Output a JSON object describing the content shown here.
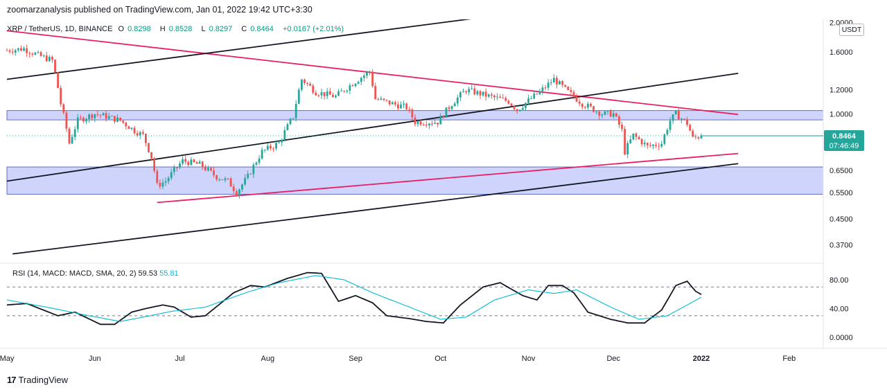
{
  "publish_line": "zoomarzanalysis published on TradingView.com, Jan 01, 2022 19:42 UTC+3:30",
  "legend": {
    "symbol": "XRP / TetherUS, 1D, BINANCE",
    "open_label": "O",
    "open": "0.8298",
    "high_label": "H",
    "high": "0.8528",
    "low_label": "L",
    "low": "0.8297",
    "close_label": "C",
    "close": "0.8464",
    "change": "+0.0167 (+2.01%)"
  },
  "currency": "USDT",
  "last_price": {
    "price": "0.8464",
    "countdown": "07:46:49"
  },
  "rsi_legend": {
    "label": "RSI (14, MACD: MACD, SMA, 20, 2)",
    "rsi_value": "59.53",
    "ma_value": "55.81"
  },
  "brand": {
    "logo": "17",
    "name": "TradingView"
  },
  "chart_data": [
    {
      "type": "candlestick",
      "scale": "log",
      "y_ticks": [
        2.0,
        1.6,
        1.2,
        1.0,
        0.65,
        0.55,
        0.45,
        0.37
      ],
      "y_tick_labels": [
        "2.0000",
        "1.6000",
        "1.2000",
        "1.0000",
        "0.6500",
        "0.5500",
        "0.4500",
        "0.3700"
      ],
      "x_labels": [
        "May",
        "Jun",
        "Jul",
        "Aug",
        "Sep",
        "Oct",
        "Nov",
        "Dec",
        "2022",
        "Feb"
      ],
      "last_close": 0.8464,
      "anchors": [
        [
          "2021-05-01",
          1.62
        ],
        [
          "2021-05-07",
          1.64
        ],
        [
          "2021-05-12",
          1.56
        ],
        [
          "2021-05-17",
          1.5
        ],
        [
          "2021-05-20",
          1.08
        ],
        [
          "2021-05-23",
          0.8
        ],
        [
          "2021-05-26",
          0.95
        ],
        [
          "2021-06-01",
          1.0
        ],
        [
          "2021-06-05",
          0.98
        ],
        [
          "2021-06-10",
          0.95
        ],
        [
          "2021-06-15",
          0.88
        ],
        [
          "2021-06-18",
          0.85
        ],
        [
          "2021-06-21",
          0.72
        ],
        [
          "2021-06-23",
          0.58
        ],
        [
          "2021-06-26",
          0.6
        ],
        [
          "2021-07-02",
          0.7
        ],
        [
          "2021-07-08",
          0.68
        ],
        [
          "2021-07-14",
          0.62
        ],
        [
          "2021-07-18",
          0.6
        ],
        [
          "2021-07-21",
          0.55
        ],
        [
          "2021-07-25",
          0.62
        ],
        [
          "2021-07-30",
          0.75
        ],
        [
          "2021-08-05",
          0.8
        ],
        [
          "2021-08-10",
          0.98
        ],
        [
          "2021-08-13",
          1.3
        ],
        [
          "2021-08-18",
          1.18
        ],
        [
          "2021-08-25",
          1.14
        ],
        [
          "2021-09-02",
          1.3
        ],
        [
          "2021-09-06",
          1.38
        ],
        [
          "2021-09-08",
          1.12
        ],
        [
          "2021-09-14",
          1.08
        ],
        [
          "2021-09-19",
          1.05
        ],
        [
          "2021-09-22",
          0.94
        ],
        [
          "2021-09-30",
          0.94
        ],
        [
          "2021-10-05",
          1.08
        ],
        [
          "2021-10-10",
          1.2
        ],
        [
          "2021-10-17",
          1.15
        ],
        [
          "2021-10-25",
          1.1
        ],
        [
          "2021-10-28",
          1.03
        ],
        [
          "2021-11-05",
          1.18
        ],
        [
          "2021-11-10",
          1.3
        ],
        [
          "2021-11-15",
          1.18
        ],
        [
          "2021-11-20",
          1.08
        ],
        [
          "2021-11-27",
          1.0
        ],
        [
          "2021-12-01",
          1.0
        ],
        [
          "2021-12-04",
          0.88
        ],
        [
          "2021-12-05",
          0.75
        ],
        [
          "2021-12-08",
          0.85
        ],
        [
          "2021-12-13",
          0.78
        ],
        [
          "2021-12-18",
          0.8
        ],
        [
          "2021-12-21",
          0.95
        ],
        [
          "2021-12-23",
          1.0
        ],
        [
          "2021-12-27",
          0.93
        ],
        [
          "2021-12-29",
          0.83
        ],
        [
          "2022-01-01",
          0.8464
        ]
      ],
      "zones": [
        {
          "name": "resistance-zone",
          "from": 0.955,
          "to": 1.025,
          "color": "#c5cdfc"
        },
        {
          "name": "support-zone",
          "from": 0.543,
          "to": 0.668,
          "color": "#c5cdfc"
        }
      ],
      "trend_lines": [
        {
          "color": "#e91e63",
          "from": [
            "2021-05-01",
            1.88
          ],
          "to": [
            "2022-01-14",
            0.995
          ]
        },
        {
          "color": "#e91e63",
          "from": [
            "2021-06-23",
            0.51
          ],
          "to": [
            "2022-01-14",
            0.74
          ]
        },
        {
          "color": "#131722",
          "from": [
            "2021-05-01",
            1.3
          ],
          "to": [
            "2021-10-19",
            2.1
          ]
        },
        {
          "color": "#131722",
          "from": [
            "2021-05-01",
            0.6
          ],
          "to": [
            "2022-01-14",
            1.36
          ]
        },
        {
          "color": "#131722",
          "from": [
            "2021-05-03",
            0.345
          ],
          "to": [
            "2022-01-14",
            0.685
          ]
        }
      ]
    },
    {
      "type": "line",
      "title": "RSI (14, MACD: MACD, SMA, 20, 2)",
      "y_ticks": [
        80,
        40,
        0
      ],
      "y_tick_labels": [
        "80.00",
        "40.00",
        "0.0000"
      ],
      "levels": [
        70,
        30
      ],
      "series": [
        {
          "name": "RSI",
          "color": "#131722",
          "anchors": [
            [
              "2021-05-01",
              45
            ],
            [
              "2021-05-08",
              47
            ],
            [
              "2021-05-19",
              30
            ],
            [
              "2021-05-25",
              35
            ],
            [
              "2021-06-03",
              18
            ],
            [
              "2021-06-08",
              18
            ],
            [
              "2021-06-14",
              35
            ],
            [
              "2021-06-19",
              40
            ],
            [
              "2021-06-25",
              45
            ],
            [
              "2021-06-29",
              42
            ],
            [
              "2021-07-05",
              28
            ],
            [
              "2021-07-10",
              30
            ],
            [
              "2021-07-20",
              62
            ],
            [
              "2021-07-26",
              72
            ],
            [
              "2021-07-31",
              70
            ],
            [
              "2021-08-08",
              82
            ],
            [
              "2021-08-15",
              90
            ],
            [
              "2021-08-20",
              89
            ],
            [
              "2021-08-26",
              50
            ],
            [
              "2021-09-01",
              58
            ],
            [
              "2021-09-07",
              48
            ],
            [
              "2021-09-12",
              30
            ],
            [
              "2021-09-20",
              26
            ],
            [
              "2021-09-26",
              22
            ],
            [
              "2021-10-02",
              20
            ],
            [
              "2021-10-08",
              45
            ],
            [
              "2021-10-16",
              70
            ],
            [
              "2021-10-22",
              76
            ],
            [
              "2021-10-30",
              58
            ],
            [
              "2021-11-04",
              52
            ],
            [
              "2021-11-08",
              72
            ],
            [
              "2021-11-13",
              72
            ],
            [
              "2021-11-17",
              62
            ],
            [
              "2021-11-22",
              35
            ],
            [
              "2021-11-30",
              25
            ],
            [
              "2021-12-06",
              20
            ],
            [
              "2021-12-12",
              20
            ],
            [
              "2021-12-18",
              38
            ],
            [
              "2021-12-23",
              72
            ],
            [
              "2021-12-27",
              78
            ],
            [
              "2021-12-30",
              64
            ],
            [
              "2022-01-01",
              59.53
            ]
          ]
        },
        {
          "name": "MA",
          "color": "#00bcd4",
          "anchors": [
            [
              "2021-05-01",
              52
            ],
            [
              "2021-05-15",
              42
            ],
            [
              "2021-05-30",
              30
            ],
            [
              "2021-06-10",
              22
            ],
            [
              "2021-06-18",
              28
            ],
            [
              "2021-06-28",
              36
            ],
            [
              "2021-07-10",
              42
            ],
            [
              "2021-07-25",
              63
            ],
            [
              "2021-08-05",
              76
            ],
            [
              "2021-08-18",
              86
            ],
            [
              "2021-08-28",
              80
            ],
            [
              "2021-09-07",
              62
            ],
            [
              "2021-09-20",
              42
            ],
            [
              "2021-10-01",
              25
            ],
            [
              "2021-10-10",
              28
            ],
            [
              "2021-10-20",
              52
            ],
            [
              "2021-11-01",
              66
            ],
            [
              "2021-11-10",
              61
            ],
            [
              "2021-11-18",
              66
            ],
            [
              "2021-11-30",
              42
            ],
            [
              "2021-12-10",
              25
            ],
            [
              "2021-12-20",
              30
            ],
            [
              "2021-12-27",
              45
            ],
            [
              "2022-01-01",
              55.81
            ]
          ]
        }
      ]
    }
  ]
}
